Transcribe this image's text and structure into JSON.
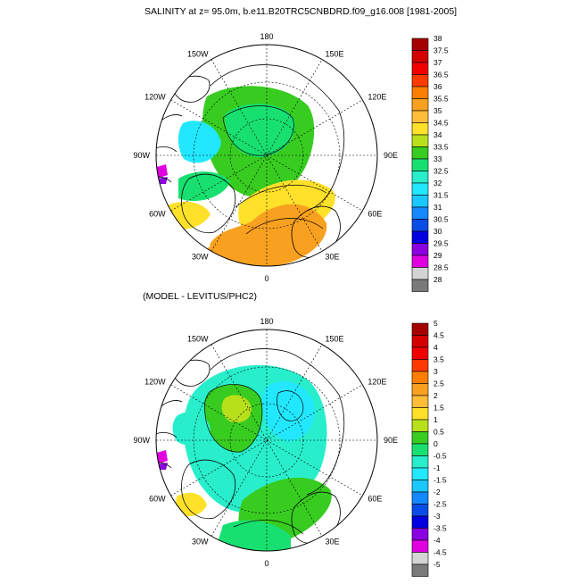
{
  "figure": {
    "title": "SALINITY at z=  95.0m, b.e11.B20TRC5CNBDRD.f09_g16.008 [1981-2005]",
    "subtitle": "(MODEL - LEVITUS/PHC2)"
  },
  "chart_data": [
    {
      "type": "heatmap",
      "projection": "north-polar-stereographic",
      "title": "SALINITY at z=  95.0m, b.e11.B20TRC5CNBDRD.f09_g16.008 [1981-2005]",
      "longitude_labels": [
        "180",
        "150E",
        "120E",
        "90E",
        "60E",
        "30E",
        "0",
        "30W",
        "60W",
        "90W",
        "120W",
        "150W"
      ],
      "colorbar": {
        "levels": [
          "38",
          "37.5",
          "37",
          "36.5",
          "36",
          "35.5",
          "35",
          "34.5",
          "34",
          "33.5",
          "33",
          "32.5",
          "32",
          "31.5",
          "31",
          "30.5",
          "30",
          "29.5",
          "29",
          "28.5",
          "28"
        ],
        "colors": [
          "#a50000",
          "#d40000",
          "#f20000",
          "#ff3a00",
          "#ff7e00",
          "#f8a020",
          "#ffbd3a",
          "#ffe12a",
          "#b8e01a",
          "#38cc20",
          "#18e070",
          "#28eecc",
          "#22e8ff",
          "#1ac8ff",
          "#1488ff",
          "#0a4ce6",
          "#0000e0",
          "#8a00e0",
          "#e000e0",
          "#d4d4d4",
          "#7a7a7a"
        ]
      }
    },
    {
      "type": "heatmap",
      "projection": "north-polar-stereographic",
      "title": "(MODEL - LEVITUS/PHC2)",
      "longitude_labels": [
        "180",
        "150E",
        "120E",
        "90E",
        "60E",
        "30E",
        "0",
        "30W",
        "60W",
        "90W",
        "120W",
        "150W"
      ],
      "colorbar": {
        "levels": [
          "5",
          "4.5",
          "4",
          "3.5",
          "3",
          "2.5",
          "2",
          "1.5",
          "1",
          "0.5",
          "0",
          "-0.5",
          "-1",
          "-1.5",
          "-2",
          "-2.5",
          "-3",
          "-3.5",
          "-4",
          "-4.5",
          "-5"
        ],
        "colors": [
          "#a50000",
          "#d40000",
          "#f20000",
          "#ff3a00",
          "#ff7e00",
          "#f8a020",
          "#ffbd3a",
          "#ffe12a",
          "#b8e01a",
          "#38cc20",
          "#18e070",
          "#28eecc",
          "#22e8ff",
          "#1ac8ff",
          "#1488ff",
          "#0a4ce6",
          "#0000e0",
          "#8a00e0",
          "#e000e0",
          "#d4d4d4",
          "#7a7a7a"
        ]
      }
    }
  ]
}
